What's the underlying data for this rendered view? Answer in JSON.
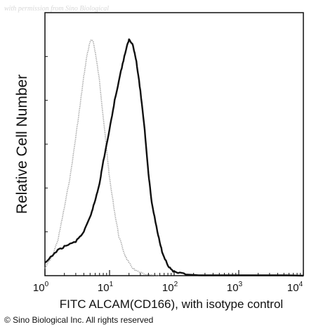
{
  "watermark": "with permission from Sino Biological",
  "copyright": "© Sino Biological Inc. All rights reserved",
  "chart_data": {
    "type": "line",
    "title": "",
    "xlabel": "FITC ALCAM(CD166), with isotype control",
    "ylabel": "Relative Cell Number",
    "x_scale": "log",
    "xlim": [
      1,
      10000
    ],
    "ylim": [
      0,
      100
    ],
    "x_ticks": [
      {
        "value": 1,
        "base": "10",
        "exp": "0"
      },
      {
        "value": 10,
        "base": "10",
        "exp": "1"
      },
      {
        "value": 100,
        "base": "10",
        "exp": "2"
      },
      {
        "value": 1000,
        "base": "10",
        "exp": "3"
      },
      {
        "value": 10000,
        "base": "10",
        "exp": "4"
      }
    ],
    "grid": false,
    "legend": "none",
    "series": [
      {
        "role": "isotype-control",
        "color": "#9a9a9a",
        "style": "dotted",
        "points": [
          [
            1.0,
            3
          ],
          [
            1.3,
            8
          ],
          [
            1.6,
            15
          ],
          [
            2.0,
            28
          ],
          [
            2.5,
            42
          ],
          [
            3.0,
            57
          ],
          [
            3.5,
            70
          ],
          [
            4.0,
            82
          ],
          [
            4.5,
            91
          ],
          [
            5.0,
            96
          ],
          [
            5.5,
            97
          ],
          [
            6.0,
            92
          ],
          [
            7.0,
            80
          ],
          [
            8.0,
            65
          ],
          [
            9.0,
            52
          ],
          [
            10.0,
            40
          ],
          [
            12.0,
            26
          ],
          [
            14.0,
            16
          ],
          [
            17.0,
            9
          ],
          [
            20.0,
            5
          ],
          [
            25.0,
            2
          ],
          [
            35.0,
            0.5
          ],
          [
            60.0,
            0
          ]
        ]
      },
      {
        "role": "ALCAM (CD166)",
        "color": "#111111",
        "style": "solid",
        "points": [
          [
            1.0,
            5
          ],
          [
            1.5,
            10
          ],
          [
            2.0,
            12
          ],
          [
            3.0,
            14
          ],
          [
            4.0,
            18
          ],
          [
            5.0,
            24
          ],
          [
            6.0,
            31
          ],
          [
            7.0,
            38
          ],
          [
            8.0,
            47
          ],
          [
            10.0,
            60
          ],
          [
            12.0,
            72
          ],
          [
            15.0,
            84
          ],
          [
            18.0,
            93
          ],
          [
            20.0,
            97
          ],
          [
            23.0,
            95
          ],
          [
            26.0,
            88
          ],
          [
            30.0,
            76
          ],
          [
            35.0,
            60
          ],
          [
            40.0,
            42
          ],
          [
            45.0,
            30
          ],
          [
            55.0,
            18
          ],
          [
            65.0,
            10
          ],
          [
            80.0,
            4
          ],
          [
            100.0,
            1.5
          ],
          [
            150.0,
            0.5
          ],
          [
            300.0,
            0
          ],
          [
            10000.0,
            0
          ]
        ]
      }
    ]
  }
}
